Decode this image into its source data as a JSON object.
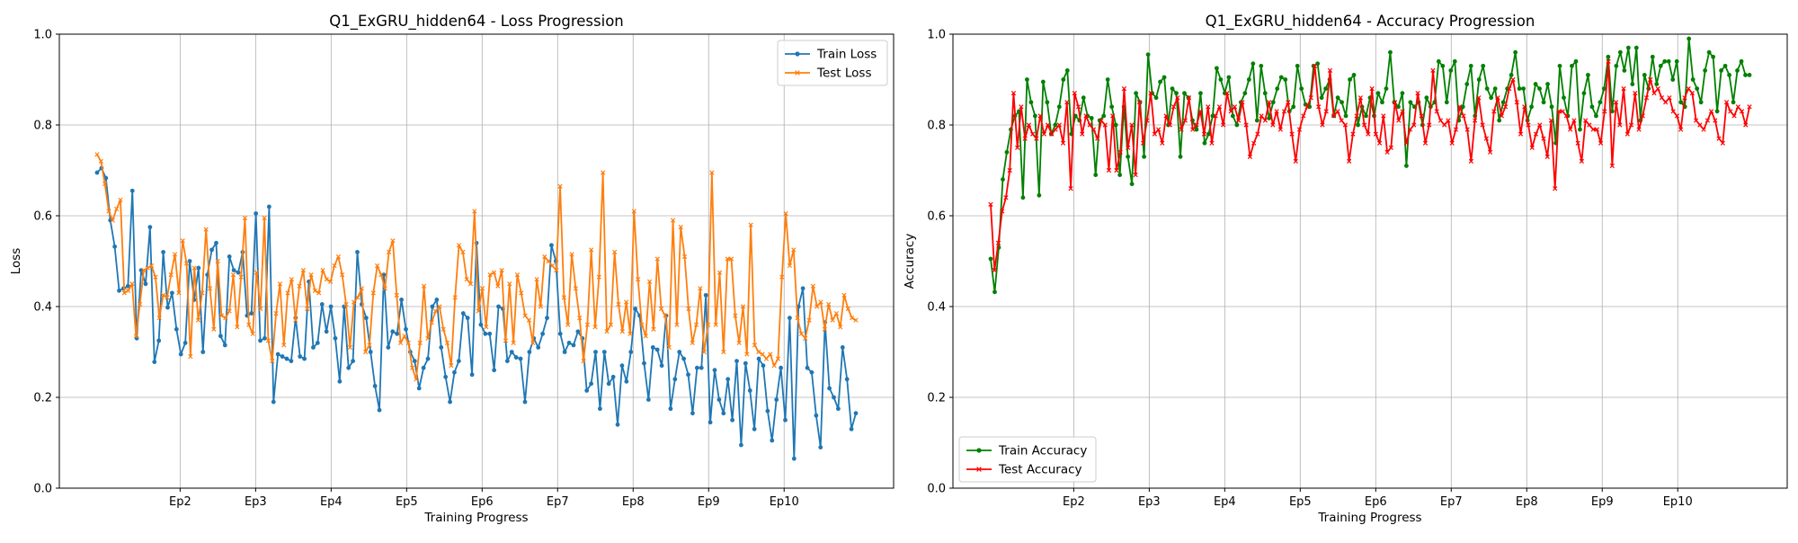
{
  "chart_data": [
    {
      "type": "line",
      "title": "Q1_ExGRU_hidden64 - Loss Progression",
      "xlabel": "Training Progress",
      "ylabel": "Loss",
      "ylim": [
        0,
        1
      ],
      "yticks": [
        "0.0",
        "0.2",
        "0.4",
        "0.6",
        "0.8",
        "1.0"
      ],
      "xticks": [
        {
          "label": "Ep2",
          "x": 2
        },
        {
          "label": "Ep3",
          "x": 3
        },
        {
          "label": "Ep4",
          "x": 4
        },
        {
          "label": "Ep5",
          "x": 5
        },
        {
          "label": "Ep6",
          "x": 6
        },
        {
          "label": "Ep7",
          "x": 7
        },
        {
          "label": "Ep8",
          "x": 8
        },
        {
          "label": "Ep9",
          "x": 9
        },
        {
          "label": "Ep10",
          "x": 10
        }
      ],
      "xlim": [
        0.4,
        11.45
      ],
      "grid": true,
      "legend": "upper right",
      "series": [
        {
          "name": "Train Loss",
          "color": "#1f77b4",
          "marker": "circle",
          "start_x": 0.9,
          "end_x": 10.95,
          "values": [
            0.695,
            0.705,
            0.683,
            0.59,
            0.532,
            0.435,
            0.44,
            0.445,
            0.655,
            0.33,
            0.48,
            0.45,
            0.575,
            0.278,
            0.325,
            0.52,
            0.398,
            0.43,
            0.35,
            0.295,
            0.32,
            0.5,
            0.415,
            0.485,
            0.3,
            0.47,
            0.525,
            0.54,
            0.335,
            0.315,
            0.51,
            0.48,
            0.475,
            0.52,
            0.38,
            0.385,
            0.605,
            0.325,
            0.33,
            0.62,
            0.19,
            0.295,
            0.29,
            0.285,
            0.28,
            0.375,
            0.29,
            0.285,
            0.455,
            0.31,
            0.32,
            0.405,
            0.345,
            0.4,
            0.33,
            0.235,
            0.4,
            0.265,
            0.28,
            0.52,
            0.405,
            0.375,
            0.3,
            0.225,
            0.172,
            0.47,
            0.31,
            0.345,
            0.34,
            0.415,
            0.35,
            0.3,
            0.28,
            0.22,
            0.265,
            0.285,
            0.4,
            0.415,
            0.31,
            0.245,
            0.19,
            0.255,
            0.28,
            0.385,
            0.375,
            0.25,
            0.54,
            0.36,
            0.34,
            0.34,
            0.26,
            0.4,
            0.395,
            0.28,
            0.3,
            0.288,
            0.285,
            0.19,
            0.3,
            0.33,
            0.31,
            0.34,
            0.375,
            0.535,
            0.5,
            0.34,
            0.3,
            0.32,
            0.315,
            0.345,
            0.33,
            0.215,
            0.23,
            0.3,
            0.175,
            0.3,
            0.23,
            0.245,
            0.14,
            0.27,
            0.235,
            0.3,
            0.395,
            0.38,
            0.275,
            0.195,
            0.31,
            0.305,
            0.27,
            0.38,
            0.175,
            0.24,
            0.3,
            0.285,
            0.25,
            0.165,
            0.265,
            0.265,
            0.425,
            0.145,
            0.26,
            0.195,
            0.165,
            0.24,
            0.15,
            0.28,
            0.095,
            0.275,
            0.215,
            0.13,
            0.285,
            0.27,
            0.17,
            0.105,
            0.195,
            0.265,
            0.15,
            0.375,
            0.065,
            0.4,
            0.44,
            0.265,
            0.255,
            0.16,
            0.09,
            0.365,
            0.22,
            0.2,
            0.175,
            0.31,
            0.24,
            0.13,
            0.165
          ]
        },
        {
          "name": "Test Loss",
          "color": "#ff7f0e",
          "marker": "x",
          "start_x": 0.9,
          "end_x": 10.95,
          "values": [
            0.735,
            0.72,
            0.67,
            0.61,
            0.59,
            0.615,
            0.635,
            0.43,
            0.435,
            0.45,
            0.335,
            0.405,
            0.48,
            0.485,
            0.49,
            0.465,
            0.375,
            0.425,
            0.42,
            0.47,
            0.515,
            0.43,
            0.545,
            0.495,
            0.29,
            0.485,
            0.37,
            0.43,
            0.57,
            0.44,
            0.35,
            0.5,
            0.38,
            0.375,
            0.39,
            0.47,
            0.355,
            0.465,
            0.595,
            0.36,
            0.34,
            0.475,
            0.395,
            0.595,
            0.325,
            0.28,
            0.385,
            0.45,
            0.315,
            0.43,
            0.46,
            0.37,
            0.445,
            0.48,
            0.395,
            0.47,
            0.435,
            0.43,
            0.48,
            0.46,
            0.455,
            0.49,
            0.51,
            0.47,
            0.405,
            0.31,
            0.41,
            0.42,
            0.44,
            0.3,
            0.315,
            0.43,
            0.49,
            0.47,
            0.44,
            0.52,
            0.545,
            0.425,
            0.32,
            0.335,
            0.32,
            0.265,
            0.24,
            0.32,
            0.445,
            0.33,
            0.365,
            0.39,
            0.4,
            0.35,
            0.32,
            0.27,
            0.42,
            0.535,
            0.52,
            0.46,
            0.45,
            0.61,
            0.39,
            0.44,
            0.355,
            0.47,
            0.475,
            0.445,
            0.48,
            0.325,
            0.45,
            0.32,
            0.47,
            0.43,
            0.38,
            0.37,
            0.32,
            0.46,
            0.4,
            0.51,
            0.5,
            0.49,
            0.48,
            0.665,
            0.42,
            0.36,
            0.515,
            0.44,
            0.375,
            0.28,
            0.36,
            0.525,
            0.355,
            0.465,
            0.695,
            0.345,
            0.36,
            0.52,
            0.405,
            0.345,
            0.41,
            0.34,
            0.61,
            0.46,
            0.36,
            0.335,
            0.455,
            0.35,
            0.505,
            0.395,
            0.38,
            0.31,
            0.59,
            0.36,
            0.575,
            0.51,
            0.395,
            0.32,
            0.36,
            0.44,
            0.3,
            0.36,
            0.695,
            0.36,
            0.475,
            0.3,
            0.505,
            0.505,
            0.38,
            0.32,
            0.4,
            0.295,
            0.58,
            0.315,
            0.3,
            0.295,
            0.285,
            0.295,
            0.27,
            0.285,
            0.465,
            0.605,
            0.49,
            0.525,
            0.375,
            0.34,
            0.33,
            0.37,
            0.445,
            0.4,
            0.41,
            0.35,
            0.405,
            0.37,
            0.385,
            0.355,
            0.425,
            0.395,
            0.375,
            0.37
          ]
        }
      ]
    },
    {
      "type": "line",
      "title": "Q1_ExGRU_hidden64 - Accuracy Progression",
      "xlabel": "Training Progress",
      "ylabel": "Accuracy",
      "ylim": [
        0,
        1
      ],
      "yticks": [
        "0.0",
        "0.2",
        "0.4",
        "0.6",
        "0.8",
        "1.0"
      ],
      "xticks": [
        {
          "label": "Ep2",
          "x": 2
        },
        {
          "label": "Ep3",
          "x": 3
        },
        {
          "label": "Ep4",
          "x": 4
        },
        {
          "label": "Ep5",
          "x": 5
        },
        {
          "label": "Ep6",
          "x": 6
        },
        {
          "label": "Ep7",
          "x": 7
        },
        {
          "label": "Ep8",
          "x": 8
        },
        {
          "label": "Ep9",
          "x": 9
        },
        {
          "label": "Ep10",
          "x": 10
        }
      ],
      "xlim": [
        0.4,
        11.45
      ],
      "grid": true,
      "legend": "lower left",
      "series": [
        {
          "name": "Train Accuracy",
          "color": "#008000",
          "marker": "circle",
          "start_x": 0.9,
          "end_x": 10.95,
          "values": [
            0.505,
            0.432,
            0.53,
            0.68,
            0.74,
            0.79,
            0.82,
            0.83,
            0.64,
            0.9,
            0.85,
            0.82,
            0.645,
            0.895,
            0.85,
            0.78,
            0.8,
            0.84,
            0.9,
            0.92,
            0.78,
            0.82,
            0.81,
            0.86,
            0.82,
            0.815,
            0.69,
            0.81,
            0.82,
            0.9,
            0.84,
            0.8,
            0.69,
            0.84,
            0.73,
            0.67,
            0.87,
            0.85,
            0.73,
            0.955,
            0.87,
            0.86,
            0.895,
            0.905,
            0.8,
            0.88,
            0.87,
            0.73,
            0.87,
            0.86,
            0.81,
            0.79,
            0.87,
            0.76,
            0.78,
            0.82,
            0.925,
            0.9,
            0.87,
            0.905,
            0.82,
            0.8,
            0.85,
            0.87,
            0.9,
            0.935,
            0.81,
            0.93,
            0.87,
            0.815,
            0.85,
            0.88,
            0.905,
            0.9,
            0.83,
            0.84,
            0.93,
            0.88,
            0.845,
            0.84,
            0.93,
            0.935,
            0.86,
            0.88,
            0.9,
            0.82,
            0.86,
            0.85,
            0.82,
            0.9,
            0.91,
            0.8,
            0.84,
            0.82,
            0.86,
            0.82,
            0.87,
            0.85,
            0.88,
            0.96,
            0.85,
            0.84,
            0.87,
            0.71,
            0.85,
            0.84,
            0.85,
            0.8,
            0.86,
            0.84,
            0.85,
            0.94,
            0.93,
            0.85,
            0.92,
            0.94,
            0.81,
            0.84,
            0.89,
            0.93,
            0.82,
            0.9,
            0.93,
            0.88,
            0.86,
            0.88,
            0.81,
            0.85,
            0.88,
            0.91,
            0.96,
            0.88,
            0.88,
            0.81,
            0.84,
            0.89,
            0.88,
            0.85,
            0.89,
            0.84,
            0.76,
            0.93,
            0.86,
            0.82,
            0.93,
            0.94,
            0.79,
            0.87,
            0.91,
            0.84,
            0.82,
            0.85,
            0.88,
            0.95,
            0.83,
            0.93,
            0.96,
            0.92,
            0.97,
            0.89,
            0.97,
            0.81,
            0.91,
            0.88,
            0.95,
            0.89,
            0.93,
            0.94,
            0.94,
            0.9,
            0.94,
            0.85,
            0.84,
            0.99,
            0.9,
            0.88,
            0.85,
            0.92,
            0.96,
            0.95,
            0.83,
            0.92,
            0.93,
            0.91,
            0.85,
            0.92,
            0.94,
            0.91,
            0.91
          ]
        },
        {
          "name": "Test Accuracy",
          "color": "#ff0000",
          "marker": "x",
          "start_x": 0.9,
          "end_x": 10.95,
          "values": [
            0.625,
            0.48,
            0.54,
            0.61,
            0.64,
            0.7,
            0.87,
            0.75,
            0.84,
            0.77,
            0.8,
            0.78,
            0.77,
            0.82,
            0.78,
            0.8,
            0.78,
            0.79,
            0.8,
            0.76,
            0.85,
            0.66,
            0.87,
            0.84,
            0.78,
            0.82,
            0.8,
            0.79,
            0.77,
            0.81,
            0.8,
            0.7,
            0.82,
            0.7,
            0.74,
            0.88,
            0.75,
            0.8,
            0.69,
            0.85,
            0.76,
            0.81,
            0.87,
            0.78,
            0.79,
            0.76,
            0.82,
            0.8,
            0.84,
            0.86,
            0.79,
            0.81,
            0.86,
            0.79,
            0.8,
            0.83,
            0.78,
            0.84,
            0.76,
            0.82,
            0.84,
            0.8,
            0.87,
            0.83,
            0.84,
            0.81,
            0.85,
            0.8,
            0.73,
            0.76,
            0.78,
            0.82,
            0.81,
            0.85,
            0.8,
            0.83,
            0.79,
            0.83,
            0.85,
            0.78,
            0.72,
            0.79,
            0.82,
            0.84,
            0.86,
            0.93,
            0.84,
            0.8,
            0.83,
            0.92,
            0.82,
            0.83,
            0.81,
            0.8,
            0.72,
            0.78,
            0.82,
            0.86,
            0.8,
            0.78,
            0.88,
            0.78,
            0.76,
            0.82,
            0.74,
            0.75,
            0.85,
            0.81,
            0.83,
            0.76,
            0.79,
            0.8,
            0.87,
            0.82,
            0.76,
            0.8,
            0.92,
            0.83,
            0.81,
            0.8,
            0.81,
            0.76,
            0.79,
            0.84,
            0.82,
            0.79,
            0.72,
            0.81,
            0.86,
            0.8,
            0.77,
            0.74,
            0.83,
            0.86,
            0.82,
            0.84,
            0.88,
            0.9,
            0.85,
            0.78,
            0.84,
            0.8,
            0.75,
            0.78,
            0.8,
            0.77,
            0.73,
            0.81,
            0.66,
            0.83,
            0.83,
            0.82,
            0.79,
            0.81,
            0.76,
            0.72,
            0.81,
            0.8,
            0.79,
            0.79,
            0.76,
            0.83,
            0.94,
            0.71,
            0.85,
            0.8,
            0.88,
            0.78,
            0.8,
            0.87,
            0.79,
            0.82,
            0.86,
            0.9,
            0.87,
            0.88,
            0.86,
            0.85,
            0.86,
            0.83,
            0.82,
            0.79,
            0.86,
            0.88,
            0.87,
            0.81,
            0.8,
            0.79,
            0.81,
            0.83,
            0.81,
            0.77,
            0.76,
            0.85,
            0.83,
            0.82,
            0.84,
            0.83,
            0.8,
            0.84
          ]
        }
      ]
    }
  ]
}
